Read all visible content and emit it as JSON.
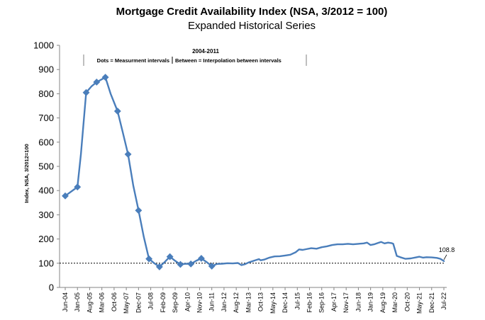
{
  "chart_data": {
    "type": "line",
    "title": "Mortgage Credit Availability Index (NSA, 3/2012 = 100)",
    "subtitle": "Expanded Historical Series",
    "ylabel": "Index, NSA, 3/2012=100",
    "xlabel": "",
    "ylim": [
      0,
      1000
    ],
    "yticks": [
      0,
      100,
      200,
      300,
      400,
      500,
      600,
      700,
      800,
      900,
      1000
    ],
    "grid": false,
    "reference_line": {
      "y": 100,
      "style": "dotted"
    },
    "annotation_header": "2004-2011",
    "annotation_left": "Dots = Measurment intervals",
    "annotation_right": "Between = Interpolation between intervals",
    "last_value_label": "108.8",
    "line_color": "#4a7ebb",
    "xtick_labels": [
      "Jun-04",
      "Jan-05",
      "Aug-05",
      "Mar-06",
      "Oct-06",
      "May-07",
      "Dec-07",
      "Jul-08",
      "Feb-09",
      "Sep-09",
      "Apr-10",
      "Nov-10",
      "Jun-11",
      "Jan-12",
      "Aug-12",
      "Mar-13",
      "Oct-13",
      "May-14",
      "Dec-14",
      "Jul-15",
      "Feb-16",
      "Sep-16",
      "Apr-17",
      "Nov-17",
      "Jun-18",
      "Jan-19",
      "Aug-19",
      "Mar-20",
      "Oct-20",
      "May-21",
      "Dec-21",
      "Jul-22"
    ],
    "markers": [
      {
        "x": "Jun-04",
        "y": 378
      },
      {
        "x": "Jan-05",
        "y": 415
      },
      {
        "x": "Jun-05",
        "y": 805
      },
      {
        "x": "Dec-05",
        "y": 848
      },
      {
        "x": "May-06",
        "y": 868
      },
      {
        "x": "Dec-06",
        "y": 728
      },
      {
        "x": "Jun-07",
        "y": 550
      },
      {
        "x": "Dec-07",
        "y": 318
      },
      {
        "x": "Jun-08",
        "y": 118
      },
      {
        "x": "Dec-08",
        "y": 85
      },
      {
        "x": "Jun-09",
        "y": 127
      },
      {
        "x": "Dec-09",
        "y": 95
      },
      {
        "x": "Jun-10",
        "y": 97
      },
      {
        "x": "Dec-10",
        "y": 120
      },
      {
        "x": "Jun-11",
        "y": 88
      }
    ],
    "series": [
      {
        "values": [
          [
            "Jun-04",
            378
          ],
          [
            "Jan-05",
            415
          ],
          [
            "Mar-05",
            550
          ],
          [
            "Jun-05",
            805
          ],
          [
            "Sep-05",
            830
          ],
          [
            "Dec-05",
            848
          ],
          [
            "Mar-06",
            860
          ],
          [
            "May-06",
            868
          ],
          [
            "Aug-06",
            800
          ],
          [
            "Dec-06",
            728
          ],
          [
            "Mar-07",
            640
          ],
          [
            "Jun-07",
            550
          ],
          [
            "Sep-07",
            420
          ],
          [
            "Dec-07",
            318
          ],
          [
            "Mar-08",
            210
          ],
          [
            "Jun-08",
            118
          ],
          [
            "Sep-08",
            100
          ],
          [
            "Dec-08",
            85
          ],
          [
            "Mar-09",
            105
          ],
          [
            "Jun-09",
            127
          ],
          [
            "Sep-09",
            110
          ],
          [
            "Dec-09",
            95
          ],
          [
            "Mar-10",
            98
          ],
          [
            "Jun-10",
            97
          ],
          [
            "Sep-10",
            110
          ],
          [
            "Dec-10",
            120
          ],
          [
            "Mar-11",
            105
          ],
          [
            "Jun-11",
            88
          ],
          [
            "Sep-11",
            97
          ],
          [
            "Dec-11",
            98
          ],
          [
            "Mar-12",
            100
          ],
          [
            "Jun-12",
            99
          ],
          [
            "Sep-12",
            101
          ],
          [
            "Nov-12",
            92
          ],
          [
            "Jan-13",
            96
          ],
          [
            "Mar-13",
            103
          ],
          [
            "Jun-13",
            110
          ],
          [
            "Sep-13",
            117
          ],
          [
            "Oct-13",
            112
          ],
          [
            "Dec-13",
            115
          ],
          [
            "Mar-14",
            123
          ],
          [
            "Jun-14",
            128
          ],
          [
            "Sep-14",
            129
          ],
          [
            "Dec-14",
            132
          ],
          [
            "Mar-15",
            135
          ],
          [
            "Jun-15",
            145
          ],
          [
            "Aug-15",
            157
          ],
          [
            "Oct-15",
            155
          ],
          [
            "Dec-15",
            158
          ],
          [
            "Mar-16",
            162
          ],
          [
            "Jun-16",
            160
          ],
          [
            "Sep-16",
            166
          ],
          [
            "Dec-16",
            170
          ],
          [
            "Mar-17",
            175
          ],
          [
            "Jun-17",
            178
          ],
          [
            "Sep-17",
            178
          ],
          [
            "Dec-17",
            180
          ],
          [
            "Mar-18",
            178
          ],
          [
            "Jun-18",
            180
          ],
          [
            "Sep-18",
            182
          ],
          [
            "Nov-18",
            185
          ],
          [
            "Jan-19",
            175
          ],
          [
            "Mar-19",
            178
          ],
          [
            "May-19",
            183
          ],
          [
            "Jul-19",
            188
          ],
          [
            "Sep-19",
            182
          ],
          [
            "Nov-19",
            185
          ],
          [
            "Jan-20",
            183
          ],
          [
            "Feb-20",
            180
          ],
          [
            "Mar-20",
            155
          ],
          [
            "Apr-20",
            130
          ],
          [
            "Jun-20",
            125
          ],
          [
            "Sep-20",
            118
          ],
          [
            "Dec-20",
            120
          ],
          [
            "Mar-21",
            124
          ],
          [
            "May-21",
            127
          ],
          [
            "Jul-21",
            123
          ],
          [
            "Sep-21",
            125
          ],
          [
            "Dec-21",
            124
          ],
          [
            "Mar-22",
            122
          ],
          [
            "May-22",
            118
          ],
          [
            "Jul-22",
            108.8
          ]
        ]
      }
    ]
  }
}
